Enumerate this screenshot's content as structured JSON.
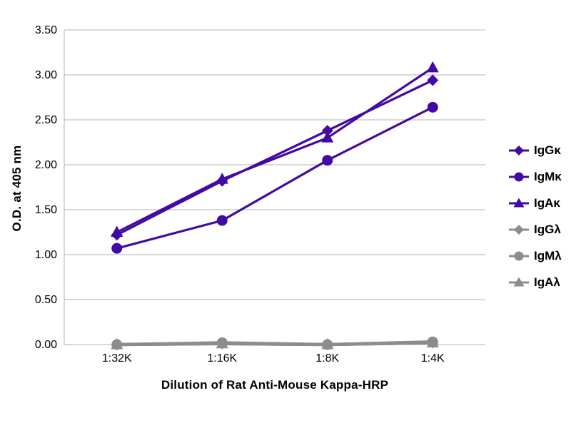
{
  "chart_data": {
    "type": "line",
    "title": "",
    "xlabel": "Dilution of Rat Anti-Mouse Kappa-HRP",
    "ylabel": "O.D. at 405 nm",
    "categories": [
      "1:32K",
      "1:16K",
      "1:8K",
      "1:4K"
    ],
    "ylim": [
      0,
      3.5
    ],
    "ytick_step": 0.5,
    "ytick_labels": [
      "0.00",
      "0.50",
      "1.00",
      "1.50",
      "2.00",
      "2.50",
      "3.00",
      "3.50"
    ],
    "grid": true,
    "legend_position": "right",
    "colors": {
      "kappa_purple": "#4209a5",
      "lambda_gray": "#8c8c8c",
      "gridline": "#b3b3b3",
      "text": "#000000"
    },
    "series": [
      {
        "name": "IgGκ",
        "marker": "diamond",
        "color": "#4209a5",
        "values": [
          1.22,
          1.82,
          2.38,
          2.94
        ]
      },
      {
        "name": "IgMκ",
        "marker": "circle",
        "color": "#4209a5",
        "values": [
          1.07,
          1.38,
          2.05,
          2.64
        ]
      },
      {
        "name": "IgAκ",
        "marker": "triangle",
        "color": "#4209a5",
        "values": [
          1.25,
          1.84,
          2.3,
          3.08
        ]
      },
      {
        "name": "IgGλ",
        "marker": "diamond",
        "color": "#8c8c8c",
        "values": [
          0.0,
          0.01,
          0.0,
          0.02
        ]
      },
      {
        "name": "IgMλ",
        "marker": "circle",
        "color": "#8c8c8c",
        "values": [
          0.0,
          0.02,
          0.0,
          0.03
        ]
      },
      {
        "name": "IgAλ",
        "marker": "triangle",
        "color": "#8c8c8c",
        "values": [
          0.0,
          0.01,
          0.0,
          0.02
        ]
      }
    ]
  }
}
